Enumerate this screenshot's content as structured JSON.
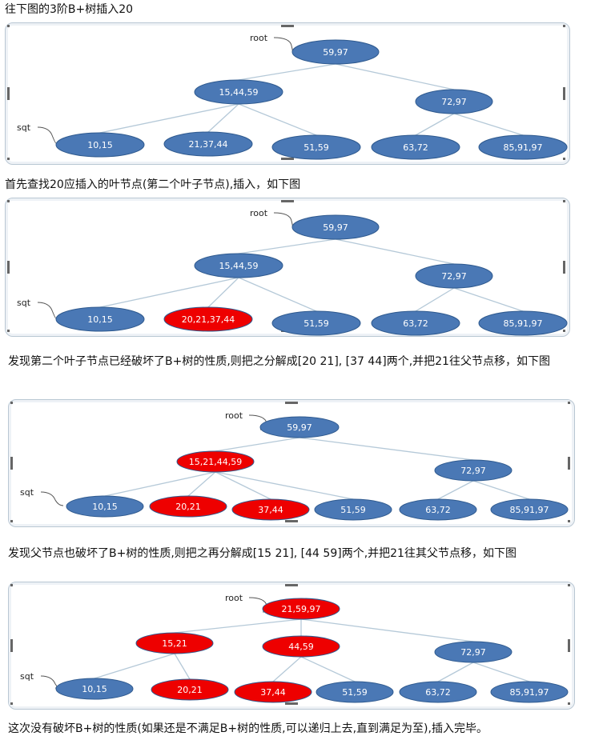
{
  "captions": {
    "c1": "往下图的3阶B+树插入20",
    "c2": "首先查找20应插入的叶节点(第二个叶子节点),插入，如下图",
    "c3": "发现第二个叶子节点已经破坏了B+树的性质,则把之分解成[20 21], [37 44]两个,并把21往父节点移，如下图",
    "c4": "发现父节点也破坏了B+树的性质,则把之再分解成[15 21], [44 59]两个,并把21往其父节点移，如下图",
    "c5": "这次没有破坏B+树的性质(如果还是不满足B+树的性质,可以递归上去,直到满足为至),插入完毕。"
  },
  "labels": {
    "root": "root",
    "sqt": "sqt"
  },
  "colors": {
    "normal": "#4a78b5",
    "highlight": "#ee0000",
    "edge": "#b5c9d8"
  },
  "diagrams": [
    {
      "root": "59,97",
      "internal": [
        {
          "keys": "15,44,59",
          "state": "normal"
        },
        {
          "keys": "72,97",
          "state": "normal"
        }
      ],
      "leaves": [
        {
          "keys": "10,15",
          "state": "normal"
        },
        {
          "keys": "21,37,44",
          "state": "normal"
        },
        {
          "keys": "51,59",
          "state": "normal"
        },
        {
          "keys": "63,72",
          "state": "normal"
        },
        {
          "keys": "85,91,97",
          "state": "normal"
        }
      ]
    },
    {
      "root": "59,97",
      "internal": [
        {
          "keys": "15,44,59",
          "state": "normal"
        },
        {
          "keys": "72,97",
          "state": "normal"
        }
      ],
      "leaves": [
        {
          "keys": "10,15",
          "state": "normal"
        },
        {
          "keys": "20,21,37,44",
          "state": "highlight"
        },
        {
          "keys": "51,59",
          "state": "normal"
        },
        {
          "keys": "63,72",
          "state": "normal"
        },
        {
          "keys": "85,91,97",
          "state": "normal"
        }
      ]
    },
    {
      "root": "59,97",
      "internal": [
        {
          "keys": "15,21,44,59",
          "state": "highlight"
        },
        {
          "keys": "72,97",
          "state": "normal"
        }
      ],
      "leaves": [
        {
          "keys": "10,15",
          "state": "normal"
        },
        {
          "keys": "20,21",
          "state": "highlight"
        },
        {
          "keys": "37,44",
          "state": "highlight"
        },
        {
          "keys": "51,59",
          "state": "normal"
        },
        {
          "keys": "63,72",
          "state": "normal"
        },
        {
          "keys": "85,91,97",
          "state": "normal"
        }
      ]
    },
    {
      "root": "21,59,97",
      "internal": [
        {
          "keys": "15,21",
          "state": "highlight"
        },
        {
          "keys": "44,59",
          "state": "highlight"
        },
        {
          "keys": "72,97",
          "state": "normal"
        }
      ],
      "leaves": [
        {
          "keys": "10,15",
          "state": "normal"
        },
        {
          "keys": "20,21",
          "state": "highlight"
        },
        {
          "keys": "37,44",
          "state": "highlight"
        },
        {
          "keys": "51,59",
          "state": "normal"
        },
        {
          "keys": "63,72",
          "state": "normal"
        },
        {
          "keys": "85,91,97",
          "state": "normal"
        }
      ]
    }
  ]
}
